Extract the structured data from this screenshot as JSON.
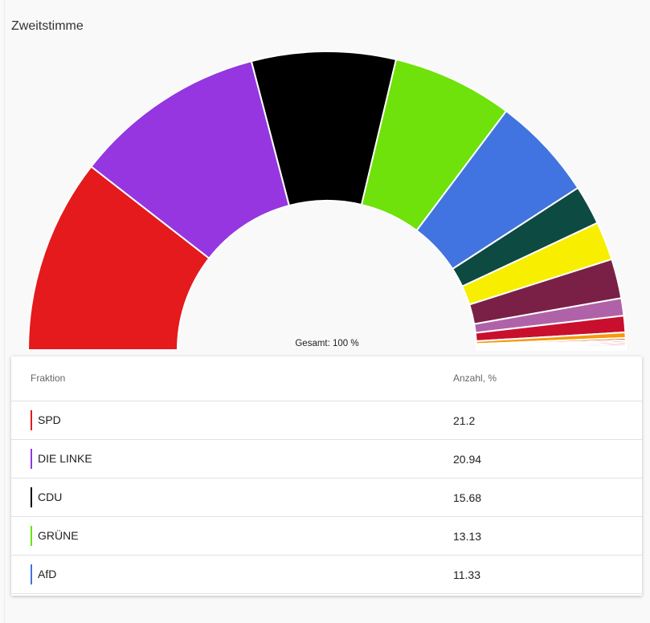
{
  "title": "Zweitstimme",
  "chart_data": {
    "type": "pie",
    "subtype": "half-donut",
    "center_label": "Gesamt: 100 %",
    "slices": [
      {
        "name": "SPD",
        "value": 21.2,
        "color": "#e41a1c"
      },
      {
        "name": "DIE LINKE",
        "value": 20.94,
        "color": "#9536e0"
      },
      {
        "name": "CDU",
        "value": 15.68,
        "color": "#000000"
      },
      {
        "name": "GRÜNE",
        "value": 13.13,
        "color": "#6ee20a"
      },
      {
        "name": "AfD",
        "value": 11.33,
        "color": "#4174e0"
      },
      {
        "name": "",
        "value": 4.3,
        "color": "#0d4a42"
      },
      {
        "name": "",
        "value": 4.2,
        "color": "#f7ee00"
      },
      {
        "name": "",
        "value": 4.3,
        "color": "#7a2047"
      },
      {
        "name": "",
        "value": 1.9,
        "color": "#b062a8"
      },
      {
        "name": "",
        "value": 1.8,
        "color": "#c8102e"
      },
      {
        "name": "",
        "value": 0.6,
        "color": "#f59a0c"
      },
      {
        "name": "",
        "value": 0.25,
        "color": "#e05a10"
      },
      {
        "name": "",
        "value": 0.2,
        "color": "#d61e2a"
      },
      {
        "name": "",
        "value": 0.2,
        "color": "#c4162a"
      },
      {
        "name": "",
        "value": 0.2,
        "color": "#a0153e"
      },
      {
        "name": "",
        "value": 0.15,
        "color": "#9a7a7a"
      },
      {
        "name": "",
        "value": 0.15,
        "color": "#d4b0b0"
      },
      {
        "name": "",
        "value": 0.15,
        "color": "#e8d0d0"
      }
    ]
  },
  "table": {
    "col_fraktion": "Fraktion",
    "col_anzahl": "Anzahl, %",
    "rows": [
      {
        "name": "SPD",
        "value": "21.2",
        "color": "#e41a1c"
      },
      {
        "name": "DIE LINKE",
        "value": "20.94",
        "color": "#9536e0"
      },
      {
        "name": "CDU",
        "value": "15.68",
        "color": "#000000"
      },
      {
        "name": "GRÜNE",
        "value": "13.13",
        "color": "#6ee20a"
      },
      {
        "name": "AfD",
        "value": "11.33",
        "color": "#4174e0"
      }
    ]
  }
}
